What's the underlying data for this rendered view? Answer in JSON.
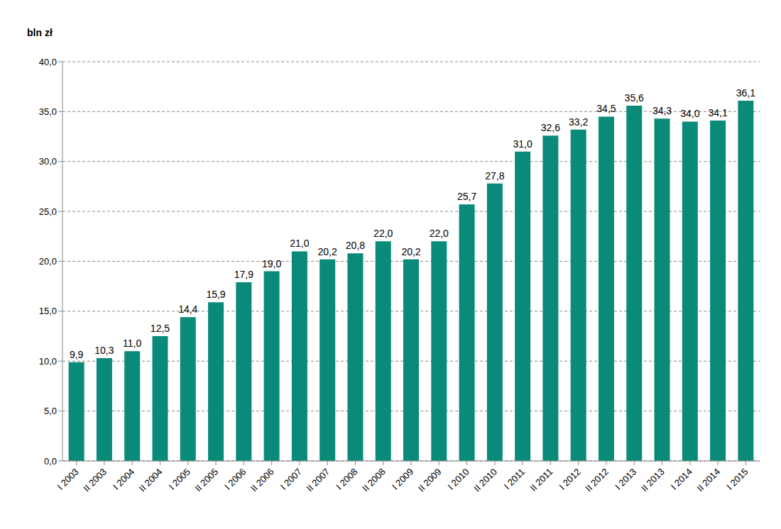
{
  "chart_data": {
    "type": "bar",
    "y_label": "bln zł",
    "categories": [
      "I 2003",
      "II 2003",
      "I 2004",
      "II 2004",
      "I 2005",
      "II 2005",
      "I 2006",
      "II 2006",
      "I 2007",
      "II 2007",
      "I 2008",
      "II 2008",
      "I 2009",
      "II 2009",
      "I 2010",
      "II 2010",
      "I 2011",
      "II 2011",
      "I 2012",
      "II 2012",
      "I 2013",
      "II 2013",
      "I 2014",
      "II 2014",
      "I 2015"
    ],
    "values": [
      9.9,
      10.3,
      11.0,
      12.5,
      14.4,
      15.9,
      17.9,
      19.0,
      21.0,
      20.2,
      20.8,
      22.0,
      20.2,
      22.0,
      25.7,
      27.8,
      31.0,
      32.6,
      33.2,
      34.5,
      35.6,
      34.3,
      34.0,
      34.1,
      36.1
    ],
    "value_labels": [
      "9,9",
      "10,3",
      "11,0",
      "12,5",
      "14,4",
      "15,9",
      "17,9",
      "19,0",
      "21,0",
      "20,2",
      "20,8",
      "22,0",
      "20,2",
      "22,0",
      "25,7",
      "27,8",
      "31,0",
      "32,6",
      "33,2",
      "34,5",
      "35,6",
      "34,3",
      "34,0",
      "34,1",
      "36,1"
    ],
    "color": "#0a8a78",
    "ylim": [
      0,
      40
    ],
    "yticks": [
      {
        "value": 0,
        "label": "0,0"
      },
      {
        "value": 5,
        "label": "5,0"
      },
      {
        "value": 10,
        "label": "10,0"
      },
      {
        "value": 15,
        "label": "15,0"
      },
      {
        "value": 20,
        "label": "20,0"
      },
      {
        "value": 25,
        "label": "25,0"
      },
      {
        "value": 30,
        "label": "30,0"
      },
      {
        "value": 35,
        "label": "35,0"
      },
      {
        "value": 40,
        "label": "40,0"
      }
    ],
    "grid": true,
    "data_labels": true
  }
}
